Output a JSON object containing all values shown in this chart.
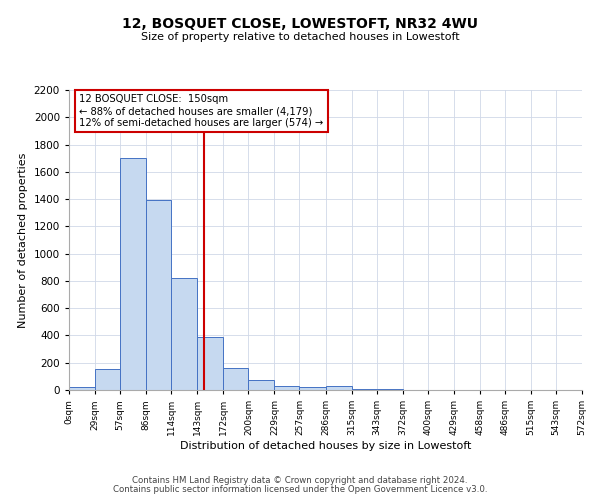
{
  "title": "12, BOSQUET CLOSE, LOWESTOFT, NR32 4WU",
  "subtitle": "Size of property relative to detached houses in Lowestoft",
  "xlabel": "Distribution of detached houses by size in Lowestoft",
  "ylabel": "Number of detached properties",
  "footer_line1": "Contains HM Land Registry data © Crown copyright and database right 2024.",
  "footer_line2": "Contains public sector information licensed under the Open Government Licence v3.0.",
  "annotation_line1": "12 BOSQUET CLOSE:  150sqm",
  "annotation_line2": "← 88% of detached houses are smaller (4,179)",
  "annotation_line3": "12% of semi-detached houses are larger (574) →",
  "bin_edges": [
    0,
    29,
    57,
    86,
    114,
    143,
    172,
    200,
    229,
    257,
    286,
    315,
    343,
    372,
    400,
    429,
    458,
    486,
    515,
    543,
    572
  ],
  "bin_counts": [
    20,
    155,
    1700,
    1390,
    820,
    390,
    165,
    70,
    30,
    20,
    30,
    5,
    5,
    0,
    0,
    0,
    0,
    0,
    0,
    0
  ],
  "bar_color": "#c6d9f0",
  "bar_edge_color": "#4472c4",
  "vline_x": 150,
  "vline_color": "#cc0000",
  "ylim": [
    0,
    2200
  ],
  "yticks": [
    0,
    200,
    400,
    600,
    800,
    1000,
    1200,
    1400,
    1600,
    1800,
    2000,
    2200
  ],
  "tick_labels": [
    "0sqm",
    "29sqm",
    "57sqm",
    "86sqm",
    "114sqm",
    "143sqm",
    "172sqm",
    "200sqm",
    "229sqm",
    "257sqm",
    "286sqm",
    "315sqm",
    "343sqm",
    "372sqm",
    "400sqm",
    "429sqm",
    "458sqm",
    "486sqm",
    "515sqm",
    "543sqm",
    "572sqm"
  ],
  "background_color": "#ffffff",
  "grid_color": "#d0d8e8"
}
